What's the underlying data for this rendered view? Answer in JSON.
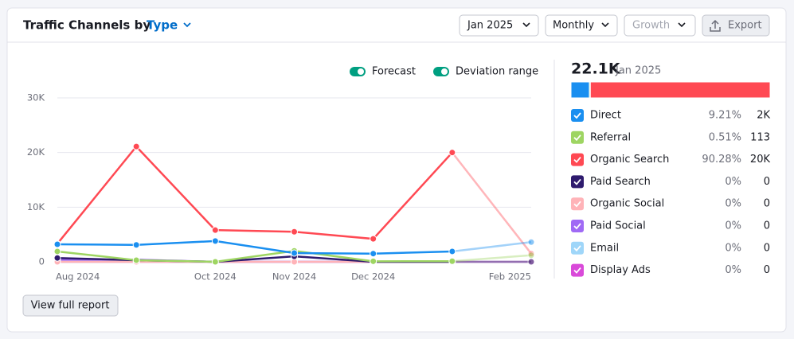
{
  "header": {
    "title": "Traffic Channels by",
    "type_selector": "Type"
  },
  "controls": {
    "date": "Jan 2025",
    "interval": "Monthly",
    "metric": "Growth",
    "export": "Export"
  },
  "toggles": [
    "Forecast",
    "Deviation range"
  ],
  "chart_data": {
    "type": "line",
    "categories": [
      "Aug 2024",
      null,
      "Oct 2024",
      "Nov 2024",
      "Dec 2024",
      null,
      "Feb 2025"
    ],
    "ylim": [
      0,
      30000
    ],
    "yticks": [
      {
        "value": 0,
        "label": "0"
      },
      {
        "value": 10000,
        "label": "10K"
      },
      {
        "value": 20000,
        "label": "20K"
      },
      {
        "value": 30000,
        "label": "30K"
      }
    ],
    "grid": true,
    "series": [
      {
        "name": "Direct",
        "color": "#1a8ff0",
        "values": [
          3200,
          3100,
          3800,
          1600,
          1500,
          1900,
          3600
        ]
      },
      {
        "name": "Referral",
        "color": "#9ed562",
        "values": [
          1900,
          300,
          0,
          2000,
          100,
          113,
          1200
        ]
      },
      {
        "name": "Organic Search",
        "color": "#ff4953",
        "values": [
          3300,
          21100,
          5800,
          5500,
          4200,
          20000,
          1500
        ]
      },
      {
        "name": "Paid Search",
        "color": "#2f1b6e",
        "values": [
          700,
          300,
          0,
          1000,
          0,
          0,
          0
        ]
      },
      {
        "name": "Organic Social",
        "color": "#ffb3b8",
        "values": [
          0,
          0,
          0,
          0,
          0,
          0,
          0
        ]
      },
      {
        "name": "Paid Social",
        "color": "#a06af5",
        "values": [
          400,
          400,
          0,
          0,
          0,
          0,
          0
        ]
      },
      {
        "name": "Email",
        "color": "#9fd6f9",
        "values": [
          0,
          0,
          0,
          0,
          0,
          0,
          0
        ]
      },
      {
        "name": "Display Ads",
        "color": "#d94ad9",
        "values": [
          0,
          0,
          0,
          0,
          0,
          0,
          0
        ]
      }
    ]
  },
  "summary": {
    "total": "22.1K",
    "period": "Jan 2025",
    "items": [
      {
        "name": "Direct",
        "color": "#1a8ff0",
        "share": 9.21,
        "share_label": "9.21%",
        "value": "2K"
      },
      {
        "name": "Referral",
        "color": "#9ed562",
        "share": 0.51,
        "share_label": "0.51%",
        "value": "113"
      },
      {
        "name": "Organic Search",
        "color": "#ff4953",
        "share": 90.28,
        "share_label": "90.28%",
        "value": "20K"
      },
      {
        "name": "Paid Search",
        "color": "#2f1b6e",
        "share": 0,
        "share_label": "0%",
        "value": "0"
      },
      {
        "name": "Organic Social",
        "color": "#ffb3b8",
        "share": 0,
        "share_label": "0%",
        "value": "0"
      },
      {
        "name": "Paid Social",
        "color": "#a06af5",
        "share": 0,
        "share_label": "0%",
        "value": "0"
      },
      {
        "name": "Email",
        "color": "#9fd6f9",
        "share": 0,
        "share_label": "0%",
        "value": "0"
      },
      {
        "name": "Display Ads",
        "color": "#d94ad9",
        "share": 0,
        "share_label": "0%",
        "value": "0"
      }
    ]
  },
  "footer": {
    "button": "View full report"
  }
}
